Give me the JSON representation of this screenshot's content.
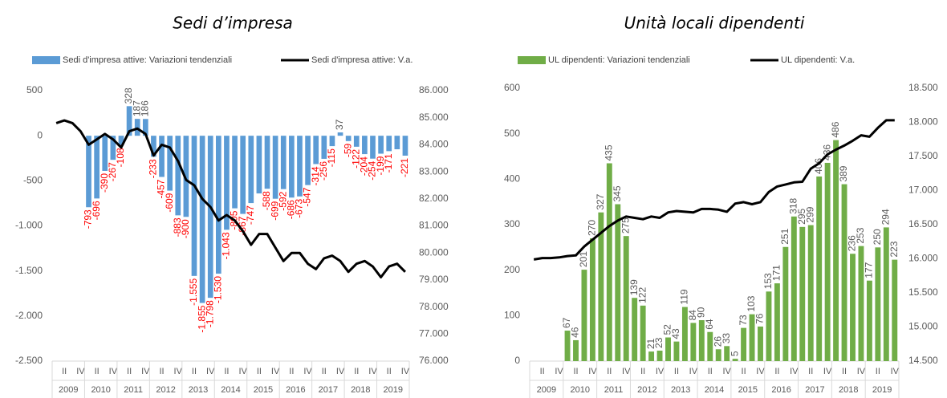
{
  "chart_data": [
    {
      "type": "bar_line",
      "title": "Sedi d’impresa",
      "categories": [
        null,
        "II",
        null,
        "IV",
        null,
        "II",
        null,
        "IV",
        null,
        "II",
        null,
        "IV",
        null,
        "II",
        null,
        "IV",
        null,
        "II",
        null,
        "IV",
        null,
        "II",
        null,
        "IV",
        null,
        "II",
        null,
        "IV",
        null,
        "II",
        null,
        "IV",
        null,
        "II",
        null,
        "IV",
        null,
        "II",
        null,
        "IV",
        null,
        "II",
        null,
        "IV"
      ],
      "groups": [
        "2009",
        "2010",
        "2011",
        "2012",
        "2013",
        "2014",
        "2015",
        "2016",
        "2017",
        "2018",
        "2019"
      ],
      "series": [
        {
          "name": "Sedi d'impresa attive:  Variazioni tendenziali",
          "color": "#5b9bd5",
          "values": [
            null,
            null,
            null,
            null,
            -793,
            -696,
            -390,
            -267,
            -108,
            328,
            187,
            186,
            -233,
            -457,
            -609,
            -883,
            -900,
            -1555,
            -1855,
            -1798,
            -1530,
            -1043,
            -805,
            -867,
            -747,
            -640,
            -588,
            -699,
            -592,
            -686,
            -673,
            -547,
            -314,
            -256,
            -115,
            37,
            -59,
            -122,
            -204,
            -254,
            -199,
            -171,
            -150,
            -221
          ],
          "value_labels": [
            null,
            null,
            null,
            null,
            "-793",
            "-696",
            "-390",
            "-267",
            "-108",
            "328",
            "187",
            "186",
            "-233",
            "-457",
            "-609",
            "-883",
            "-900",
            "-1.555",
            "-1.855",
            "-1.798",
            "-1.530",
            "-1.043",
            "-805",
            "-867",
            "-747",
            null,
            "-588",
            "-699",
            "-592",
            "-686",
            "-673",
            "-547",
            "-314",
            "-256",
            "-115",
            "37",
            "-59",
            "-122",
            "-204",
            "-254",
            "-199",
            "-171",
            null,
            "-221"
          ],
          "negative_label_color": "#ff0000"
        },
        {
          "name": "Sedi d'impresa attive:  V.a.",
          "color": "#000000",
          "axis": "y2",
          "values": [
            84800,
            84900,
            84800,
            84500,
            84000,
            84200,
            84400,
            84200,
            83900,
            84500,
            84600,
            84400,
            83600,
            84000,
            83900,
            83400,
            82700,
            82500,
            82000,
            81700,
            81200,
            81400,
            81200,
            80800,
            80300,
            80700,
            80700,
            80200,
            79700,
            80000,
            80000,
            79600,
            79400,
            79800,
            79900,
            79700,
            79300,
            79600,
            79700,
            79500,
            79100,
            79500,
            79600,
            79300
          ]
        }
      ],
      "ylim": [
        -2500,
        500
      ],
      "yticks": [
        {
          "value": -2500,
          "label": "-2.500"
        },
        {
          "value": -2000,
          "label": "-2.000"
        },
        {
          "value": -1500,
          "label": "-1.500"
        },
        {
          "value": -1000,
          "label": "-1.000"
        },
        -500,
        0,
        500
      ],
      "y2lim": [
        76000,
        86000
      ],
      "y2ticks": [
        {
          "value": 76000,
          "label": "76.000"
        },
        {
          "value": 77000,
          "label": "77.000"
        },
        {
          "value": 78000,
          "label": "78.000"
        },
        {
          "value": 79000,
          "label": "79.000"
        },
        {
          "value": 80000,
          "label": "80.000"
        },
        {
          "value": 81000,
          "label": "81.000"
        },
        {
          "value": 82000,
          "label": "82.000"
        },
        {
          "value": 83000,
          "label": "83.000"
        },
        {
          "value": 84000,
          "label": "84.000"
        },
        {
          "value": 85000,
          "label": "85.000"
        },
        {
          "value": 86000,
          "label": "86.000"
        }
      ]
    },
    {
      "type": "bar_line",
      "title": "Unità locali dipendenti",
      "categories": [
        null,
        "II",
        null,
        "IV",
        null,
        "II",
        null,
        "IV",
        null,
        "II",
        null,
        "IV",
        null,
        "II",
        null,
        "IV",
        null,
        "II",
        null,
        "IV",
        null,
        "II",
        null,
        "IV",
        null,
        "II",
        null,
        "IV",
        null,
        "II",
        null,
        "IV",
        null,
        "II",
        null,
        "IV",
        null,
        "II",
        null,
        "IV",
        null,
        "II",
        null,
        "IV"
      ],
      "groups": [
        "2009",
        "2010",
        "2011",
        "2012",
        "2013",
        "2014",
        "2015",
        "2016",
        "2017",
        "2018",
        "2019"
      ],
      "series": [
        {
          "name": "UL dipendenti:  Variazioni tendenziali",
          "color": "#70ad47",
          "values": [
            null,
            null,
            null,
            null,
            67,
            46,
            201,
            270,
            327,
            435,
            345,
            275,
            139,
            122,
            21,
            23,
            52,
            43,
            119,
            84,
            90,
            64,
            26,
            33,
            5,
            73,
            103,
            76,
            153,
            171,
            251,
            318,
            295,
            299,
            406,
            436,
            486,
            389,
            236,
            253,
            177,
            250,
            294,
            223
          ]
        },
        {
          "name": "UL dipendenti:  V.a.",
          "color": "#000000",
          "axis": "y2",
          "values": [
            15990,
            16010,
            16010,
            16020,
            16040,
            16050,
            16180,
            16280,
            16380,
            16480,
            16560,
            16620,
            16600,
            16580,
            16620,
            16600,
            16680,
            16700,
            16690,
            16680,
            16730,
            16730,
            16720,
            16690,
            16810,
            16830,
            16800,
            16830,
            16980,
            17060,
            17090,
            17120,
            17130,
            17320,
            17400,
            17530,
            17600,
            17660,
            17730,
            17810,
            17790,
            17920,
            18030,
            18030
          ]
        }
      ],
      "ylim": [
        0,
        600
      ],
      "yticks": [
        0,
        100,
        200,
        300,
        400,
        500,
        600
      ],
      "y2lim": [
        14500,
        18500
      ],
      "y2ticks": [
        {
          "value": 14500,
          "label": "14.500"
        },
        {
          "value": 15000,
          "label": "15.000"
        },
        {
          "value": 15500,
          "label": "15.500"
        },
        {
          "value": 16000,
          "label": "16.000"
        },
        {
          "value": 16500,
          "label": "16.500"
        },
        {
          "value": 17000,
          "label": "17.000"
        },
        {
          "value": 17500,
          "label": "17.500"
        },
        {
          "value": 18000,
          "label": "18.000"
        },
        {
          "value": 18500,
          "label": "18.500"
        }
      ]
    }
  ]
}
